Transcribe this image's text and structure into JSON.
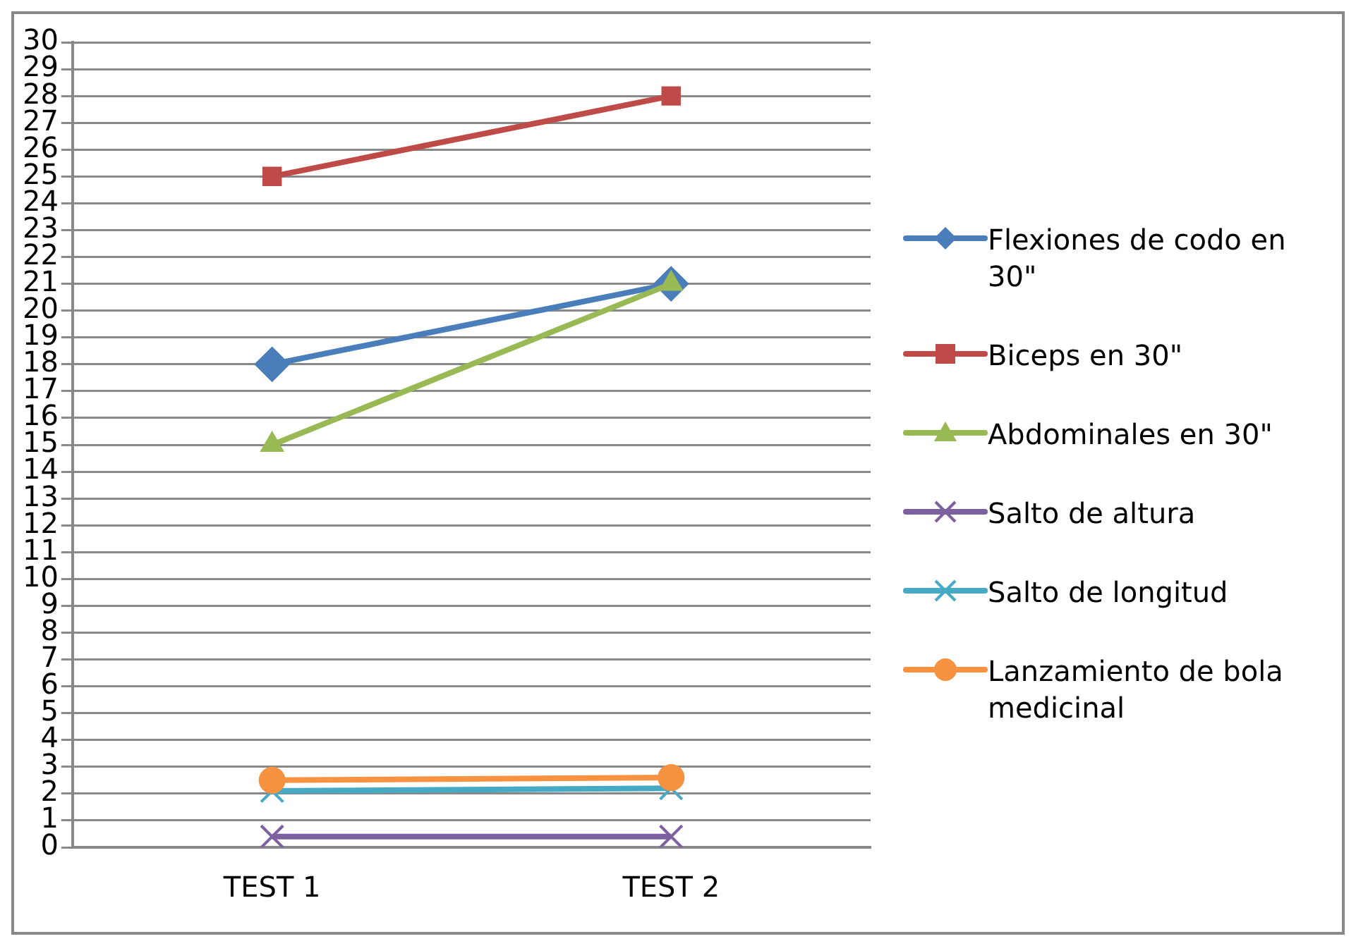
{
  "chart_data": {
    "type": "line",
    "categories": [
      "TEST 1",
      "TEST 2"
    ],
    "series": [
      {
        "name": "Flexiones de codo en 30\"",
        "color": "#4a7ebb",
        "values": [
          18,
          21
        ],
        "marker": "diamond"
      },
      {
        "name": "Biceps en 30\"",
        "color": "#be4b48",
        "values": [
          25,
          28
        ],
        "marker": "square"
      },
      {
        "name": "Abdominales en 30\"",
        "color": "#98b954",
        "values": [
          15,
          21
        ],
        "marker": "triangle"
      },
      {
        "name": "Salto de altura",
        "color": "#7d60a0",
        "values": [
          0.4,
          0.4
        ],
        "marker": "cross"
      },
      {
        "name": "Salto de longitud",
        "color": "#46aac5",
        "values": [
          2.1,
          2.2
        ],
        "marker": "cross"
      },
      {
        "name": "Lanzamiento de bola medicinal",
        "color": "#f69240",
        "values": [
          2.5,
          2.6
        ],
        "marker": "circle"
      }
    ],
    "ylim": [
      0,
      30
    ],
    "yticks": [
      0,
      1,
      2,
      3,
      4,
      5,
      6,
      7,
      8,
      9,
      10,
      11,
      12,
      13,
      14,
      15,
      16,
      17,
      18,
      19,
      20,
      21,
      22,
      23,
      24,
      25,
      26,
      27,
      28,
      29,
      30
    ],
    "grid": "y",
    "legend": "right",
    "line_style": "solid"
  }
}
